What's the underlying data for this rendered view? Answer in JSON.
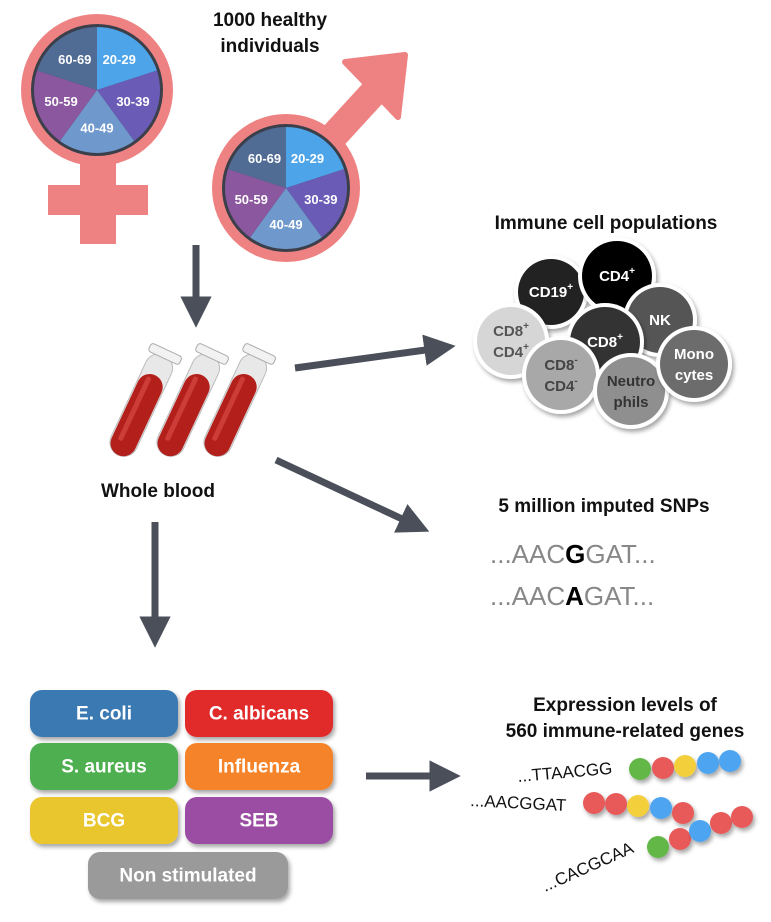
{
  "cohort": {
    "title_line1": "1000 healthy individuals",
    "female_age_groups": [
      "20-29",
      "30-39",
      "40-49",
      "50-59",
      "60-69"
    ],
    "male_age_groups": [
      "20-29",
      "30-39",
      "40-49",
      "50-59",
      "60-69"
    ],
    "age_group_colors": [
      "#4ea4e8",
      "#6a5cb6",
      "#6f98cc",
      "#8b579f",
      "#506b94"
    ],
    "symbol_color": "#ee8282"
  },
  "blood": {
    "label": "Whole blood",
    "tube_color": "#b3201c"
  },
  "immune_cells": {
    "title": "Immune cell populations",
    "cells": [
      {
        "line1": "CD19",
        "sup1": "+",
        "line2": "",
        "sup2": "",
        "fill": "#222222",
        "text": "#ffffff"
      },
      {
        "line1": "CD4",
        "sup1": "+",
        "line2": "",
        "sup2": "",
        "fill": "#000000",
        "text": "#ffffff"
      },
      {
        "line1": "NK",
        "sup1": "",
        "line2": "",
        "sup2": "",
        "fill": "#555555",
        "text": "#ffffff"
      },
      {
        "line1": "CD8",
        "sup1": "+",
        "line2": "",
        "sup2": "",
        "fill": "#333333",
        "text": "#ffffff"
      },
      {
        "line1": "CD8",
        "sup1": "+",
        "line2": "CD4",
        "sup2": "+",
        "fill": "#d6d6d6",
        "text": "#555555"
      },
      {
        "line1": "CD8",
        "sup1": "-",
        "line2": "CD4",
        "sup2": "-",
        "fill": "#a8a8a8",
        "text": "#444444"
      },
      {
        "line1": "Neutro",
        "sup1": "",
        "line2": "phils",
        "sup2": "",
        "fill": "#8f8f8f",
        "text": "#333333"
      },
      {
        "line1": "Mono",
        "sup1": "",
        "line2": "cytes",
        "sup2": "",
        "fill": "#6c6c6c",
        "text": "#ffffff"
      }
    ]
  },
  "snps": {
    "title": "5 million imputed SNPs",
    "sequences": [
      {
        "prefix": "...AAC",
        "variant": "G",
        "suffix": "GAT..."
      },
      {
        "prefix": "...AAC",
        "variant": "A",
        "suffix": "GAT..."
      }
    ]
  },
  "stimuli": [
    {
      "label": "E. coli",
      "color": "#3a79b2"
    },
    {
      "label": "C. albicans",
      "color": "#e12b2b"
    },
    {
      "label": "S. aureus",
      "color": "#4daf4f"
    },
    {
      "label": "Influenza",
      "color": "#f5832a"
    },
    {
      "label": "BCG",
      "color": "#e9c62f"
    },
    {
      "label": "SEB",
      "color": "#9a4ea2"
    },
    {
      "label": "Non stimulated",
      "color": "#9a9a9a"
    }
  ],
  "expression": {
    "title_line1": "Expression levels of",
    "title_line2": "560 immune-related genes",
    "genes": [
      {
        "sequence": "...TTAACGG",
        "beads": [
          "#62b746",
          "#e85a5a",
          "#f2cf3a",
          "#4ea4f0",
          "#4ea4f0"
        ]
      },
      {
        "sequence": "...AACGGAT",
        "beads": [
          "#e85a5a",
          "#e85a5a",
          "#f2cf3a",
          "#4ea4f0",
          "#e85a5a"
        ]
      },
      {
        "sequence": "...CACGCAA",
        "beads": [
          "#62b746",
          "#e85a5a",
          "#4ea4f0",
          "#e85a5a",
          "#e85a5a"
        ]
      }
    ]
  }
}
